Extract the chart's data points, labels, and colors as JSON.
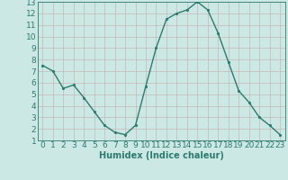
{
  "x": [
    0,
    1,
    2,
    3,
    4,
    5,
    6,
    7,
    8,
    9,
    10,
    11,
    12,
    13,
    14,
    15,
    16,
    17,
    18,
    19,
    20,
    21,
    22,
    23
  ],
  "y": [
    7.5,
    7.0,
    5.5,
    5.8,
    4.7,
    3.5,
    2.3,
    1.7,
    1.5,
    2.3,
    5.7,
    9.0,
    11.5,
    12.0,
    12.3,
    13.0,
    12.3,
    10.3,
    7.8,
    5.3,
    4.3,
    3.0,
    2.3,
    1.5
  ],
  "xlabel": "Humidex (Indice chaleur)",
  "xlim": [
    -0.5,
    23.5
  ],
  "ylim": [
    1,
    13
  ],
  "yticks": [
    1,
    2,
    3,
    4,
    5,
    6,
    7,
    8,
    9,
    10,
    11,
    12,
    13
  ],
  "xticks": [
    0,
    1,
    2,
    3,
    4,
    5,
    6,
    7,
    8,
    9,
    10,
    11,
    12,
    13,
    14,
    15,
    16,
    17,
    18,
    19,
    20,
    21,
    22,
    23
  ],
  "line_color": "#2d7a6e",
  "marker_color": "#2d7a6e",
  "bg_color": "#cce8e4",
  "grid_color_major": "#c4b8b8",
  "grid_color_minor": "#d8cccc",
  "axis_color": "#2d7a6e",
  "xlabel_fontsize": 7,
  "tick_fontsize": 6.5,
  "linewidth": 1.0,
  "markersize": 2.5
}
